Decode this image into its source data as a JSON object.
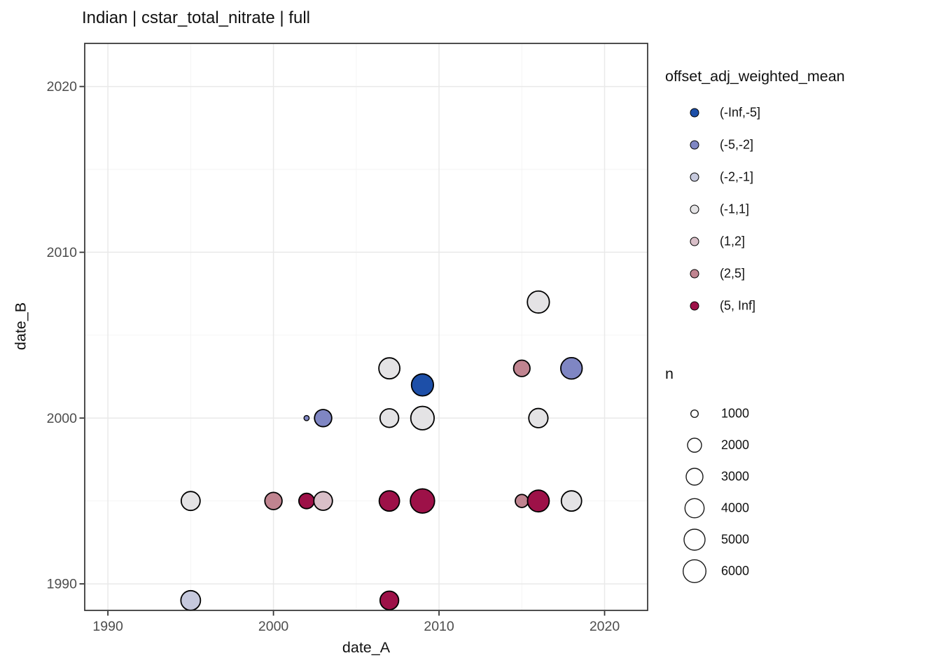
{
  "page": {
    "background": "#ffffff"
  },
  "chart_data": {
    "type": "scatter",
    "title": "Indian | cstar_total_nitrate | full",
    "xlabel": "date_A",
    "ylabel": "date_B",
    "xlim": [
      1988.6,
      2022.6
    ],
    "ylim": [
      1988.4,
      2022.6
    ],
    "x_major_ticks": [
      1990,
      2000,
      2010,
      2020
    ],
    "y_major_ticks": [
      1990,
      2000,
      2010,
      2020
    ],
    "x_minor_ticks": [
      1995,
      2005,
      2015
    ],
    "y_minor_ticks": [
      1995,
      2005,
      2015
    ],
    "grid": true,
    "legend_position": "right",
    "panel_border_color": "#303030",
    "major_grid_color": "#e9e9e9",
    "minor_grid_color": "#f3f3f3",
    "tick_label_color": "#4d4d4d",
    "point_stroke_color": "#000000",
    "color_legend": {
      "title": "offset_adj_weighted_mean",
      "entries": [
        {
          "label": "(-Inf,-5]",
          "color": "#1d4fa8"
        },
        {
          "label": "(-5,-2]",
          "color": "#7f86c3"
        },
        {
          "label": "(-2,-1]",
          "color": "#c6c9dd"
        },
        {
          "label": "(-1,1]",
          "color": "#e4e3e5"
        },
        {
          "label": "(1,2]",
          "color": "#d9bfc8"
        },
        {
          "label": "(2,5]",
          "color": "#c08490"
        },
        {
          "label": "(5, Inf]",
          "color": "#9d1148"
        }
      ]
    },
    "size_legend": {
      "title": "n",
      "entries": [
        {
          "label": "1000",
          "radius_px": 5.3
        },
        {
          "label": "2000",
          "radius_px": 10
        },
        {
          "label": "3000",
          "radius_px": 12
        },
        {
          "label": "4000",
          "radius_px": 13.7
        },
        {
          "label": "5000",
          "radius_px": 15
        },
        {
          "label": "6000",
          "radius_px": 16.3
        }
      ]
    },
    "points": [
      {
        "date_A": 1995,
        "date_B": 1995,
        "bin": "(-1,1]",
        "n_est": 3800,
        "radius_px": 13.5
      },
      {
        "date_A": 2000,
        "date_B": 1995,
        "bin": "(2,5]",
        "n_est": 3100,
        "radius_px": 12.3
      },
      {
        "date_A": 2002,
        "date_B": 1995,
        "bin": "(5, Inf]",
        "n_est": 2500,
        "radius_px": 11
      },
      {
        "date_A": 2003,
        "date_B": 1995,
        "bin": "(1,2]",
        "n_est": 3700,
        "radius_px": 13.3
      },
      {
        "date_A": 2007,
        "date_B": 1995,
        "bin": "(5, Inf]",
        "n_est": 4500,
        "radius_px": 14.5
      },
      {
        "date_A": 2009,
        "date_B": 1995,
        "bin": "(5, Inf]",
        "n_est": 7000,
        "radius_px": 17.3
      },
      {
        "date_A": 2015,
        "date_B": 1995,
        "bin": "(2,5]",
        "n_est": 1800,
        "radius_px": 9.3
      },
      {
        "date_A": 2016,
        "date_B": 1995,
        "bin": "(5, Inf]",
        "n_est": 5300,
        "radius_px": 15.5
      },
      {
        "date_A": 2018,
        "date_B": 1995,
        "bin": "(-1,1]",
        "n_est": 4500,
        "radius_px": 14.5
      },
      {
        "date_A": 1995,
        "date_B": 1989,
        "bin": "(-2,-1]",
        "n_est": 4100,
        "radius_px": 14
      },
      {
        "date_A": 2007,
        "date_B": 1989,
        "bin": "(5, Inf]",
        "n_est": 3700,
        "radius_px": 13.3
      },
      {
        "date_A": 2002,
        "date_B": 2000,
        "bin": "(-5,-2]",
        "n_est": 600,
        "radius_px": 3.7
      },
      {
        "date_A": 2003,
        "date_B": 2000,
        "bin": "(-5,-2]",
        "n_est": 3100,
        "radius_px": 12.3
      },
      {
        "date_A": 2007,
        "date_B": 2000,
        "bin": "(-1,1]",
        "n_est": 3700,
        "radius_px": 13.3
      },
      {
        "date_A": 2009,
        "date_B": 2000,
        "bin": "(-1,1]",
        "n_est": 6400,
        "radius_px": 16.7
      },
      {
        "date_A": 2016,
        "date_B": 2000,
        "bin": "(-1,1]",
        "n_est": 4000,
        "radius_px": 13.7
      },
      {
        "date_A": 2009,
        "date_B": 2002,
        "bin": "(-Inf,-5]",
        "n_est": 5400,
        "radius_px": 15.7
      },
      {
        "date_A": 2007,
        "date_B": 2003,
        "bin": "(-1,1]",
        "n_est": 4900,
        "radius_px": 15
      },
      {
        "date_A": 2015,
        "date_B": 2003,
        "bin": "(2,5]",
        "n_est": 2800,
        "radius_px": 11.7
      },
      {
        "date_A": 2018,
        "date_B": 2003,
        "bin": "(-5,-2]",
        "n_est": 5100,
        "radius_px": 15.3
      },
      {
        "date_A": 2016,
        "date_B": 2007,
        "bin": "(-1,1]",
        "n_est": 5400,
        "radius_px": 15.7
      }
    ]
  }
}
